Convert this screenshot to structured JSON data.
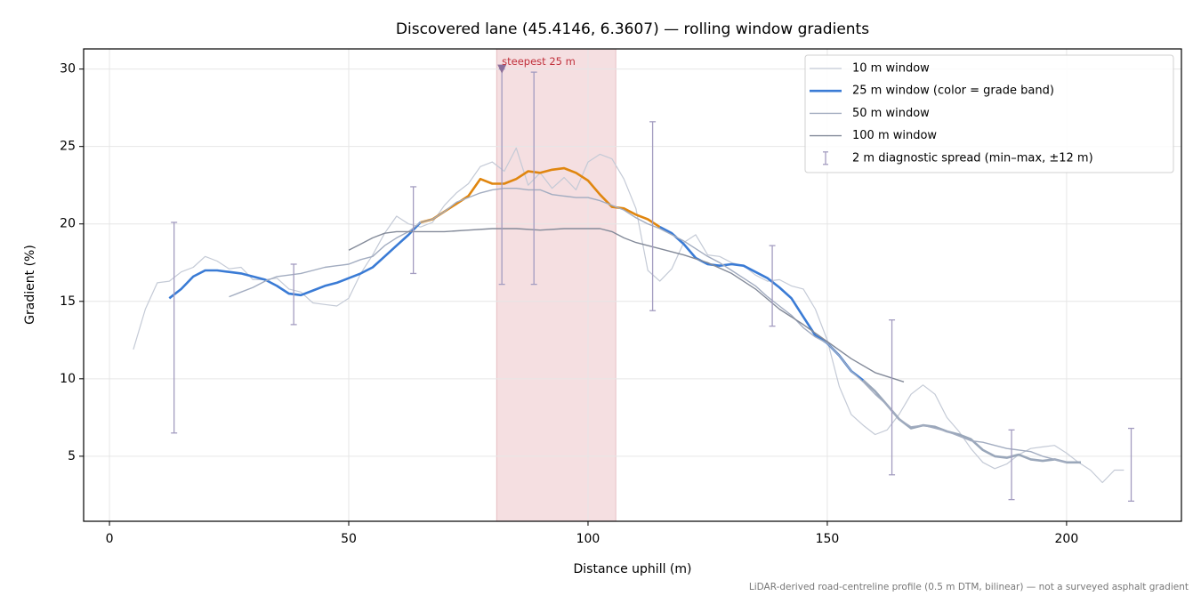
{
  "chart_data": {
    "type": "line",
    "title": "Discovered lane (45.4146, 6.3607) — rolling window gradients",
    "x_label": "Distance uphill (m)",
    "y_label": "Gradient (%)",
    "footnote": "LiDAR-derived road-centreline profile (0.5 m DTM, bilinear) — not a surveyed asphalt gradient",
    "xlim": [
      -5.4,
      224
    ],
    "ylim": [
      0.8,
      31.3
    ],
    "xticks": [
      0,
      50,
      100,
      150,
      200
    ],
    "yticks": [
      5,
      10,
      15,
      20,
      25,
      30
    ],
    "grid": true,
    "legend": "upper right",
    "series": [
      {
        "name": "10 m window",
        "color": "#c4cad6",
        "width": 1.2,
        "x": [
          5,
          7.5,
          10,
          12.5,
          15,
          17.5,
          20,
          22.5,
          25,
          27.5,
          30,
          32.5,
          35,
          37.5,
          40,
          42.5,
          45,
          47.5,
          50,
          52.5,
          55,
          57.5,
          60,
          62.5,
          65,
          67.5,
          70,
          72.5,
          75,
          77.5,
          80,
          82.5,
          85,
          87.5,
          90,
          92.5,
          95,
          97.5,
          100,
          102.5,
          105,
          107.5,
          110,
          112.5,
          115,
          117.5,
          120,
          122.5,
          125,
          127.5,
          130,
          132.5,
          135,
          137.5,
          140,
          142.5,
          145,
          147.5,
          150,
          152.5,
          155,
          157.5,
          160,
          162.5,
          165,
          167.5,
          170,
          172.5,
          175,
          177.5,
          180,
          182.5,
          185,
          187.5,
          190,
          192.5,
          195,
          197.5,
          200,
          202.5,
          205,
          207.5,
          210,
          212
        ],
        "values": [
          11.9,
          14.5,
          16.2,
          16.3,
          16.9,
          17.2,
          17.9,
          17.6,
          17.1,
          17.2,
          16.4,
          16.4,
          16.5,
          15.8,
          15.6,
          14.9,
          14.8,
          14.7,
          15.2,
          16.8,
          18.0,
          19.4,
          20.5,
          20.0,
          19.8,
          20.1,
          21.2,
          22.0,
          22.6,
          23.7,
          24.0,
          23.4,
          24.9,
          22.5,
          23.3,
          22.3,
          23.0,
          22.2,
          24.0,
          24.5,
          24.2,
          22.9,
          21.0,
          17.0,
          16.3,
          17.1,
          18.8,
          19.3,
          18.0,
          17.9,
          17.5,
          17.3,
          16.7,
          16.3,
          16.4,
          16.0,
          15.8,
          14.5,
          12.5,
          9.5,
          7.7,
          7.0,
          6.4,
          6.7,
          7.7,
          9.0,
          9.6,
          9.0,
          7.5,
          6.6,
          5.5,
          4.6,
          4.2,
          4.5,
          5.1,
          5.5,
          5.6,
          5.7,
          5.2,
          4.6,
          4.1,
          3.3,
          4.1,
          4.1
        ]
      },
      {
        "name": "25 m window (color = grade band)",
        "color": "#3a7bd5",
        "width": 2.6,
        "band_edges": [
          10,
          20
        ],
        "band_colors": [
          "#9aa7ba",
          "#3a7bd5",
          "#e0860f"
        ],
        "x": [
          12.5,
          15,
          17.5,
          20,
          22.5,
          25,
          27.5,
          30,
          32.5,
          35,
          37.5,
          40,
          42.5,
          45,
          47.5,
          50,
          52.5,
          55,
          57.5,
          60,
          62.5,
          65,
          67.5,
          70,
          72.5,
          75,
          77.5,
          80,
          82.5,
          85,
          87.5,
          90,
          92.5,
          95,
          97.5,
          100,
          102.5,
          105,
          107.5,
          110,
          112.5,
          115,
          117.5,
          120,
          122.5,
          125,
          127.5,
          130,
          132.5,
          135,
          137.5,
          140,
          142.5,
          145,
          147.5,
          150,
          152.5,
          155,
          157.5,
          160,
          162.5,
          165,
          167.5,
          170,
          172.5,
          175,
          177.5,
          180,
          182.5,
          185,
          187.5,
          190,
          192.5,
          195,
          197.5,
          200,
          203
        ],
        "values": [
          15.2,
          15.8,
          16.6,
          17.0,
          17.0,
          16.9,
          16.8,
          16.6,
          16.4,
          16.0,
          15.5,
          15.4,
          15.7,
          16.0,
          16.2,
          16.5,
          16.8,
          17.2,
          17.9,
          18.6,
          19.3,
          20.1,
          20.3,
          20.8,
          21.3,
          21.8,
          22.9,
          22.6,
          22.6,
          22.9,
          23.4,
          23.3,
          23.5,
          23.6,
          23.3,
          22.8,
          21.9,
          21.1,
          21.0,
          20.6,
          20.3,
          19.8,
          19.4,
          18.7,
          17.8,
          17.4,
          17.3,
          17.4,
          17.3,
          16.9,
          16.5,
          15.9,
          15.2,
          14.0,
          12.8,
          12.3,
          11.5,
          10.5,
          9.9,
          9.2,
          8.3,
          7.4,
          6.8,
          7.0,
          6.9,
          6.6,
          6.4,
          6.1,
          5.4,
          5.0,
          4.9,
          5.1,
          4.8,
          4.7,
          4.8,
          4.6,
          4.6
        ]
      },
      {
        "name": "50 m window",
        "color": "#a2acc0",
        "width": 1.4,
        "x": [
          25,
          27.5,
          30,
          32.5,
          35,
          37.5,
          40,
          42.5,
          45,
          47.5,
          50,
          52.5,
          55,
          57.5,
          60,
          62.5,
          65,
          67.5,
          70,
          72.5,
          75,
          77.5,
          80,
          82.5,
          85,
          87.5,
          90,
          92.5,
          95,
          97.5,
          100,
          102.5,
          105,
          107.5,
          110,
          112.5,
          115,
          117.5,
          120,
          122.5,
          125,
          127.5,
          130,
          132.5,
          135,
          137.5,
          140,
          142.5,
          145,
          147.5,
          150,
          152.5,
          155,
          157.5,
          160,
          162.5,
          165,
          167.5,
          170,
          172.5,
          175,
          177.5,
          180,
          182.5,
          185,
          187.5,
          190,
          192.5,
          195,
          197.5,
          200
        ],
        "values": [
          15.3,
          15.6,
          15.9,
          16.3,
          16.6,
          16.7,
          16.8,
          17.0,
          17.2,
          17.3,
          17.4,
          17.7,
          17.9,
          18.6,
          19.1,
          19.5,
          20.1,
          20.3,
          20.8,
          21.4,
          21.7,
          22.0,
          22.2,
          22.3,
          22.3,
          22.2,
          22.2,
          21.9,
          21.8,
          21.7,
          21.7,
          21.5,
          21.2,
          20.9,
          20.4,
          20.0,
          19.7,
          19.3,
          18.9,
          18.4,
          17.9,
          17.5,
          17.0,
          16.5,
          16.0,
          15.3,
          14.7,
          14.1,
          13.3,
          12.7,
          12.3,
          11.5,
          10.5,
          9.8,
          9.0,
          8.3,
          7.4,
          6.9,
          7.0,
          6.8,
          6.6,
          6.3,
          6.0,
          5.9,
          5.7,
          5.5,
          5.4,
          5.3,
          5.0,
          4.8,
          4.6
        ]
      },
      {
        "name": "100 m window",
        "color": "#838a99",
        "width": 1.4,
        "x": [
          50,
          52.5,
          55,
          57.5,
          60,
          65,
          70,
          75,
          80,
          85,
          90,
          95,
          100,
          102.5,
          105,
          107.5,
          110,
          115,
          120,
          125,
          130,
          135,
          140,
          145,
          150,
          155,
          160,
          166
        ],
        "values": [
          18.3,
          18.7,
          19.1,
          19.4,
          19.5,
          19.5,
          19.5,
          19.6,
          19.7,
          19.7,
          19.6,
          19.7,
          19.7,
          19.7,
          19.5,
          19.1,
          18.8,
          18.4,
          18.0,
          17.5,
          16.8,
          15.8,
          14.5,
          13.5,
          12.4,
          11.3,
          10.4,
          9.8
        ]
      }
    ],
    "spread": {
      "name": "2 m diagnostic spread (min–max, ±12 m)",
      "color": "#a39cc0",
      "x": [
        13.5,
        38.5,
        63.5,
        82,
        88.7,
        113.5,
        138.5,
        163.5,
        188.5,
        213.5
      ],
      "low": [
        6.5,
        13.5,
        16.8,
        16.1,
        16.1,
        14.4,
        13.4,
        3.8,
        2.2,
        2.1
      ],
      "high": [
        20.1,
        17.4,
        22.4,
        30.0,
        29.8,
        26.6,
        18.6,
        13.8,
        6.7,
        6.8
      ]
    },
    "steepest": {
      "label": "steepest 25 m",
      "x0": 80.9,
      "x1": 105.8,
      "color": "#f5dfe1",
      "marker_x": 82,
      "marker_y": 30,
      "label_color": "#c0313c"
    }
  }
}
